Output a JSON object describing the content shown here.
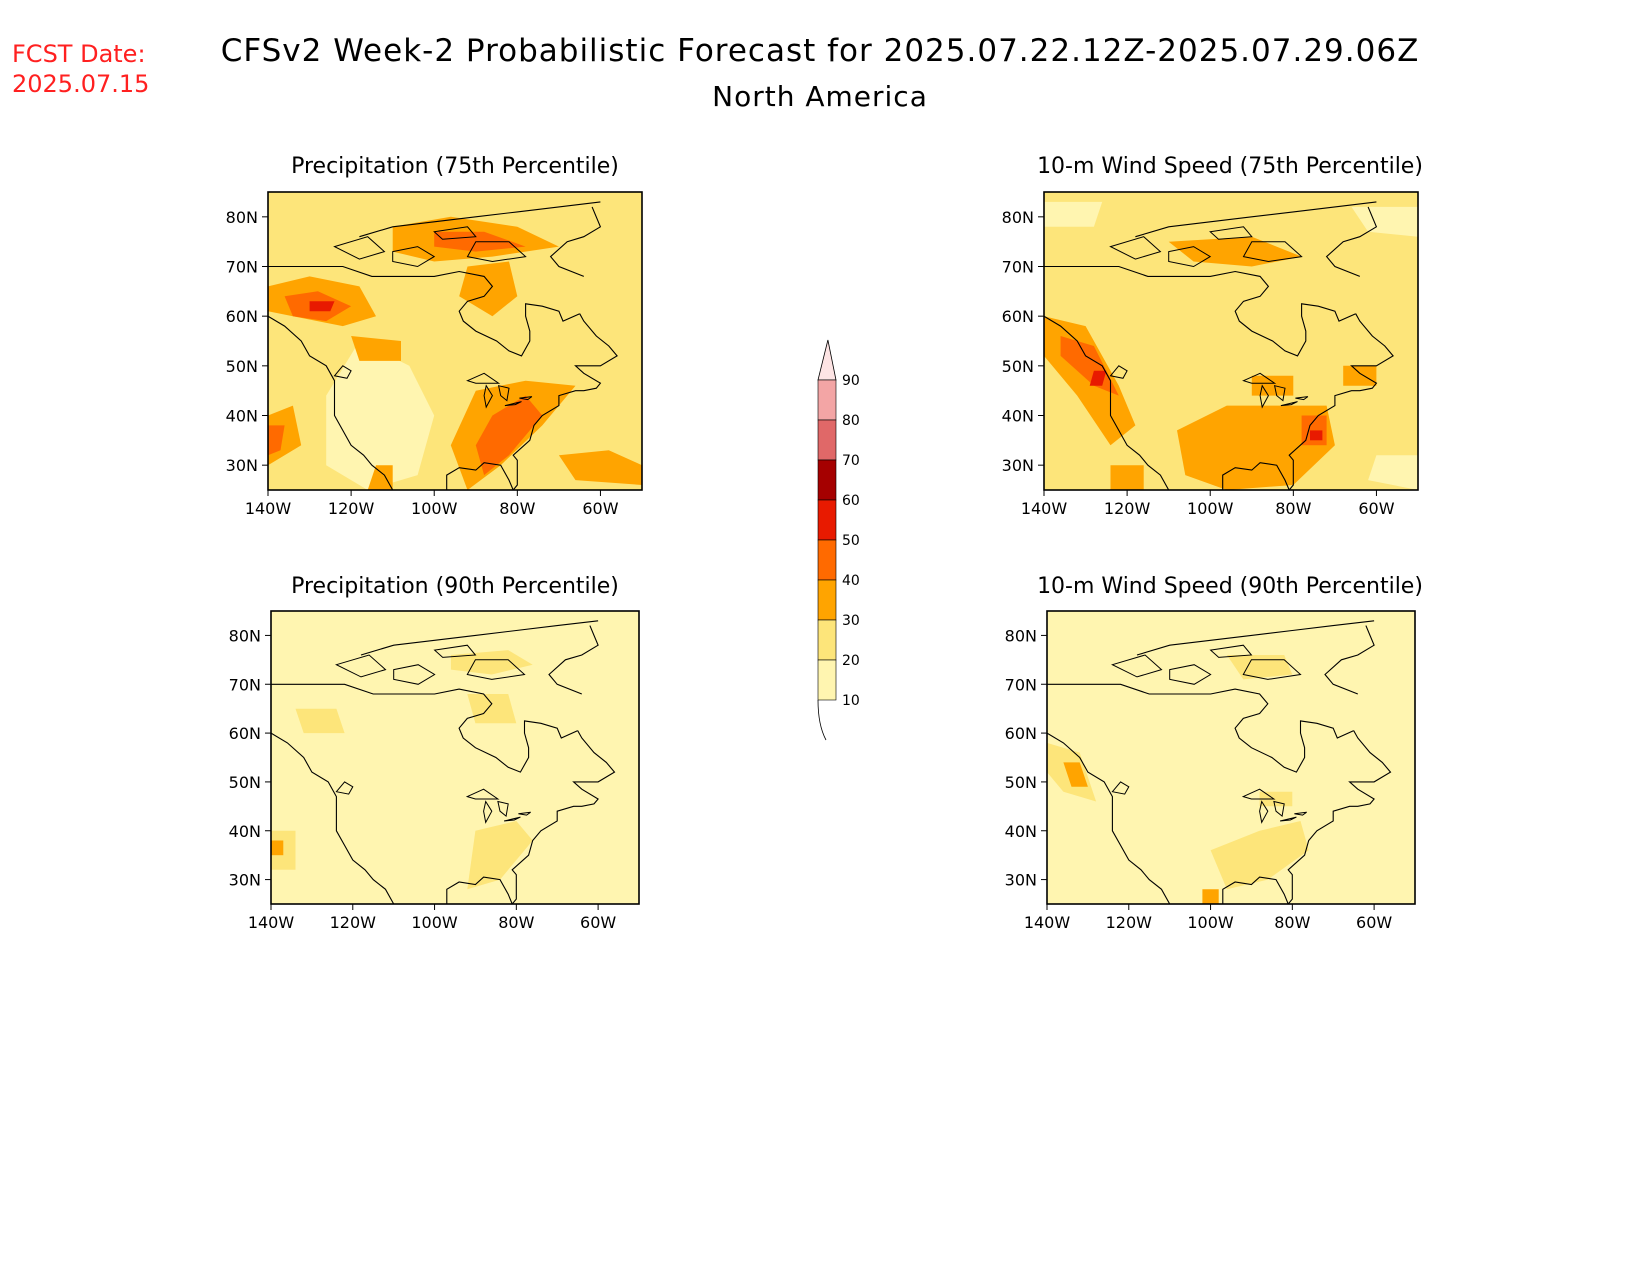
{
  "header": {
    "fcst_label": "FCST Date:",
    "fcst_date": "2025.07.15",
    "title": "CFSv2 Week-2 Probabilistic Forecast for 2025.07.22.12Z-2025.07.29.06Z",
    "subtitle": "North America"
  },
  "colors": {
    "fcst_text": "#ff2020",
    "bins": [
      "#fff5b0",
      "#fde57a",
      "#ffa400",
      "#ff6a00",
      "#e81a00",
      "#a50000",
      "#e06868",
      "#f3a5a5",
      "#fde4e4"
    ]
  },
  "colorbar": {
    "levels": [
      "10",
      "20",
      "30",
      "40",
      "50",
      "60",
      "70",
      "80",
      "90"
    ]
  },
  "axes": {
    "lon_ticks": [
      "140W",
      "120W",
      "100W",
      "80W",
      "60W"
    ],
    "lat_ticks": [
      "30N",
      "40N",
      "50N",
      "60N",
      "70N",
      "80N"
    ]
  },
  "panels": [
    {
      "id": "precip75",
      "title": "Precipitation (75th Percentile)",
      "overall_bin": 1
    },
    {
      "id": "wind75",
      "title": "10-m Wind Speed (75th Percentile)",
      "overall_bin": 1
    },
    {
      "id": "precip90",
      "title": "Precipitation (90th Percentile)",
      "overall_bin": 0
    },
    {
      "id": "wind90",
      "title": "10-m Wind Speed (90th Percentile)",
      "overall_bin": 0
    }
  ]
}
